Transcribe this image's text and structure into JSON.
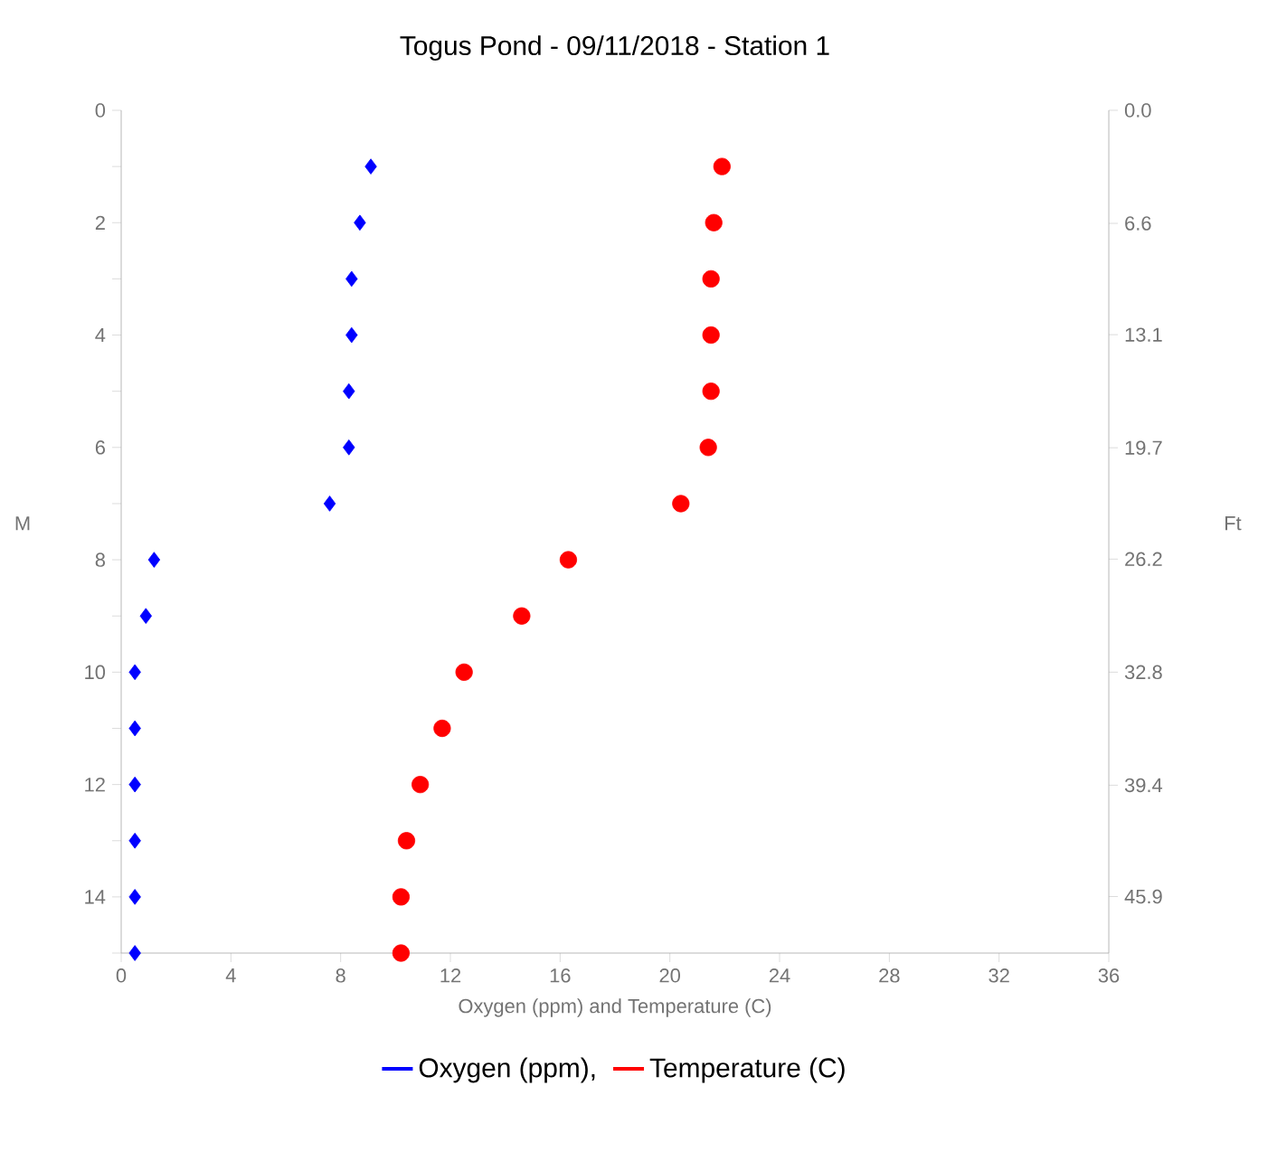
{
  "chart_data": {
    "type": "scatter",
    "title": "Togus Pond - 09/11/2018 - Station 1",
    "xlabel": "Oxygen (ppm) and Temperature (C)",
    "ylabel": "M",
    "y2label": "Ft",
    "series": [
      {
        "name": "Oxygen (ppm),",
        "color": "#0000ff",
        "marker": "diamond",
        "x": [
          9.1,
          8.7,
          8.4,
          8.4,
          8.3,
          8.3,
          7.6,
          1.2,
          0.9,
          0.5,
          0.5,
          0.5,
          0.5,
          0.5,
          0.5
        ],
        "values": [
          1,
          2,
          3,
          4,
          5,
          6,
          7,
          8,
          9,
          10,
          11,
          12,
          13,
          14,
          15
        ]
      },
      {
        "name": "Temperature (C)",
        "color": "#ff0000",
        "marker": "circle",
        "x": [
          21.9,
          21.6,
          21.5,
          21.5,
          21.5,
          21.4,
          20.4,
          16.3,
          14.6,
          12.5,
          11.7,
          10.9,
          10.4,
          10.2,
          10.2
        ],
        "values": [
          1,
          2,
          3,
          4,
          5,
          6,
          7,
          8,
          9,
          10,
          11,
          12,
          13,
          14,
          15
        ]
      }
    ],
    "xlim": [
      0,
      36
    ],
    "xticks": [
      0,
      4,
      8,
      12,
      16,
      20,
      24,
      28,
      32,
      36
    ],
    "ylim": [
      15,
      0
    ],
    "yticks": [
      0,
      {
        "value": 1,
        "label": null
      },
      2,
      {
        "value": 3,
        "label": null
      },
      4,
      {
        "value": 5,
        "label": null
      },
      6,
      {
        "value": 7,
        "label": null
      },
      8,
      {
        "value": 9,
        "label": null
      },
      10,
      {
        "value": 11,
        "label": null
      },
      12,
      {
        "value": 13,
        "label": null
      },
      14,
      {
        "value": 15,
        "label": null
      }
    ],
    "y2lim": [
      49.2,
      0
    ],
    "y2ticks": [
      {
        "value": 0,
        "label": "0.0"
      },
      6.6,
      13.1,
      19.7,
      26.2,
      32.8,
      39.4,
      45.9
    ],
    "grid": false,
    "legend": "bottom"
  }
}
